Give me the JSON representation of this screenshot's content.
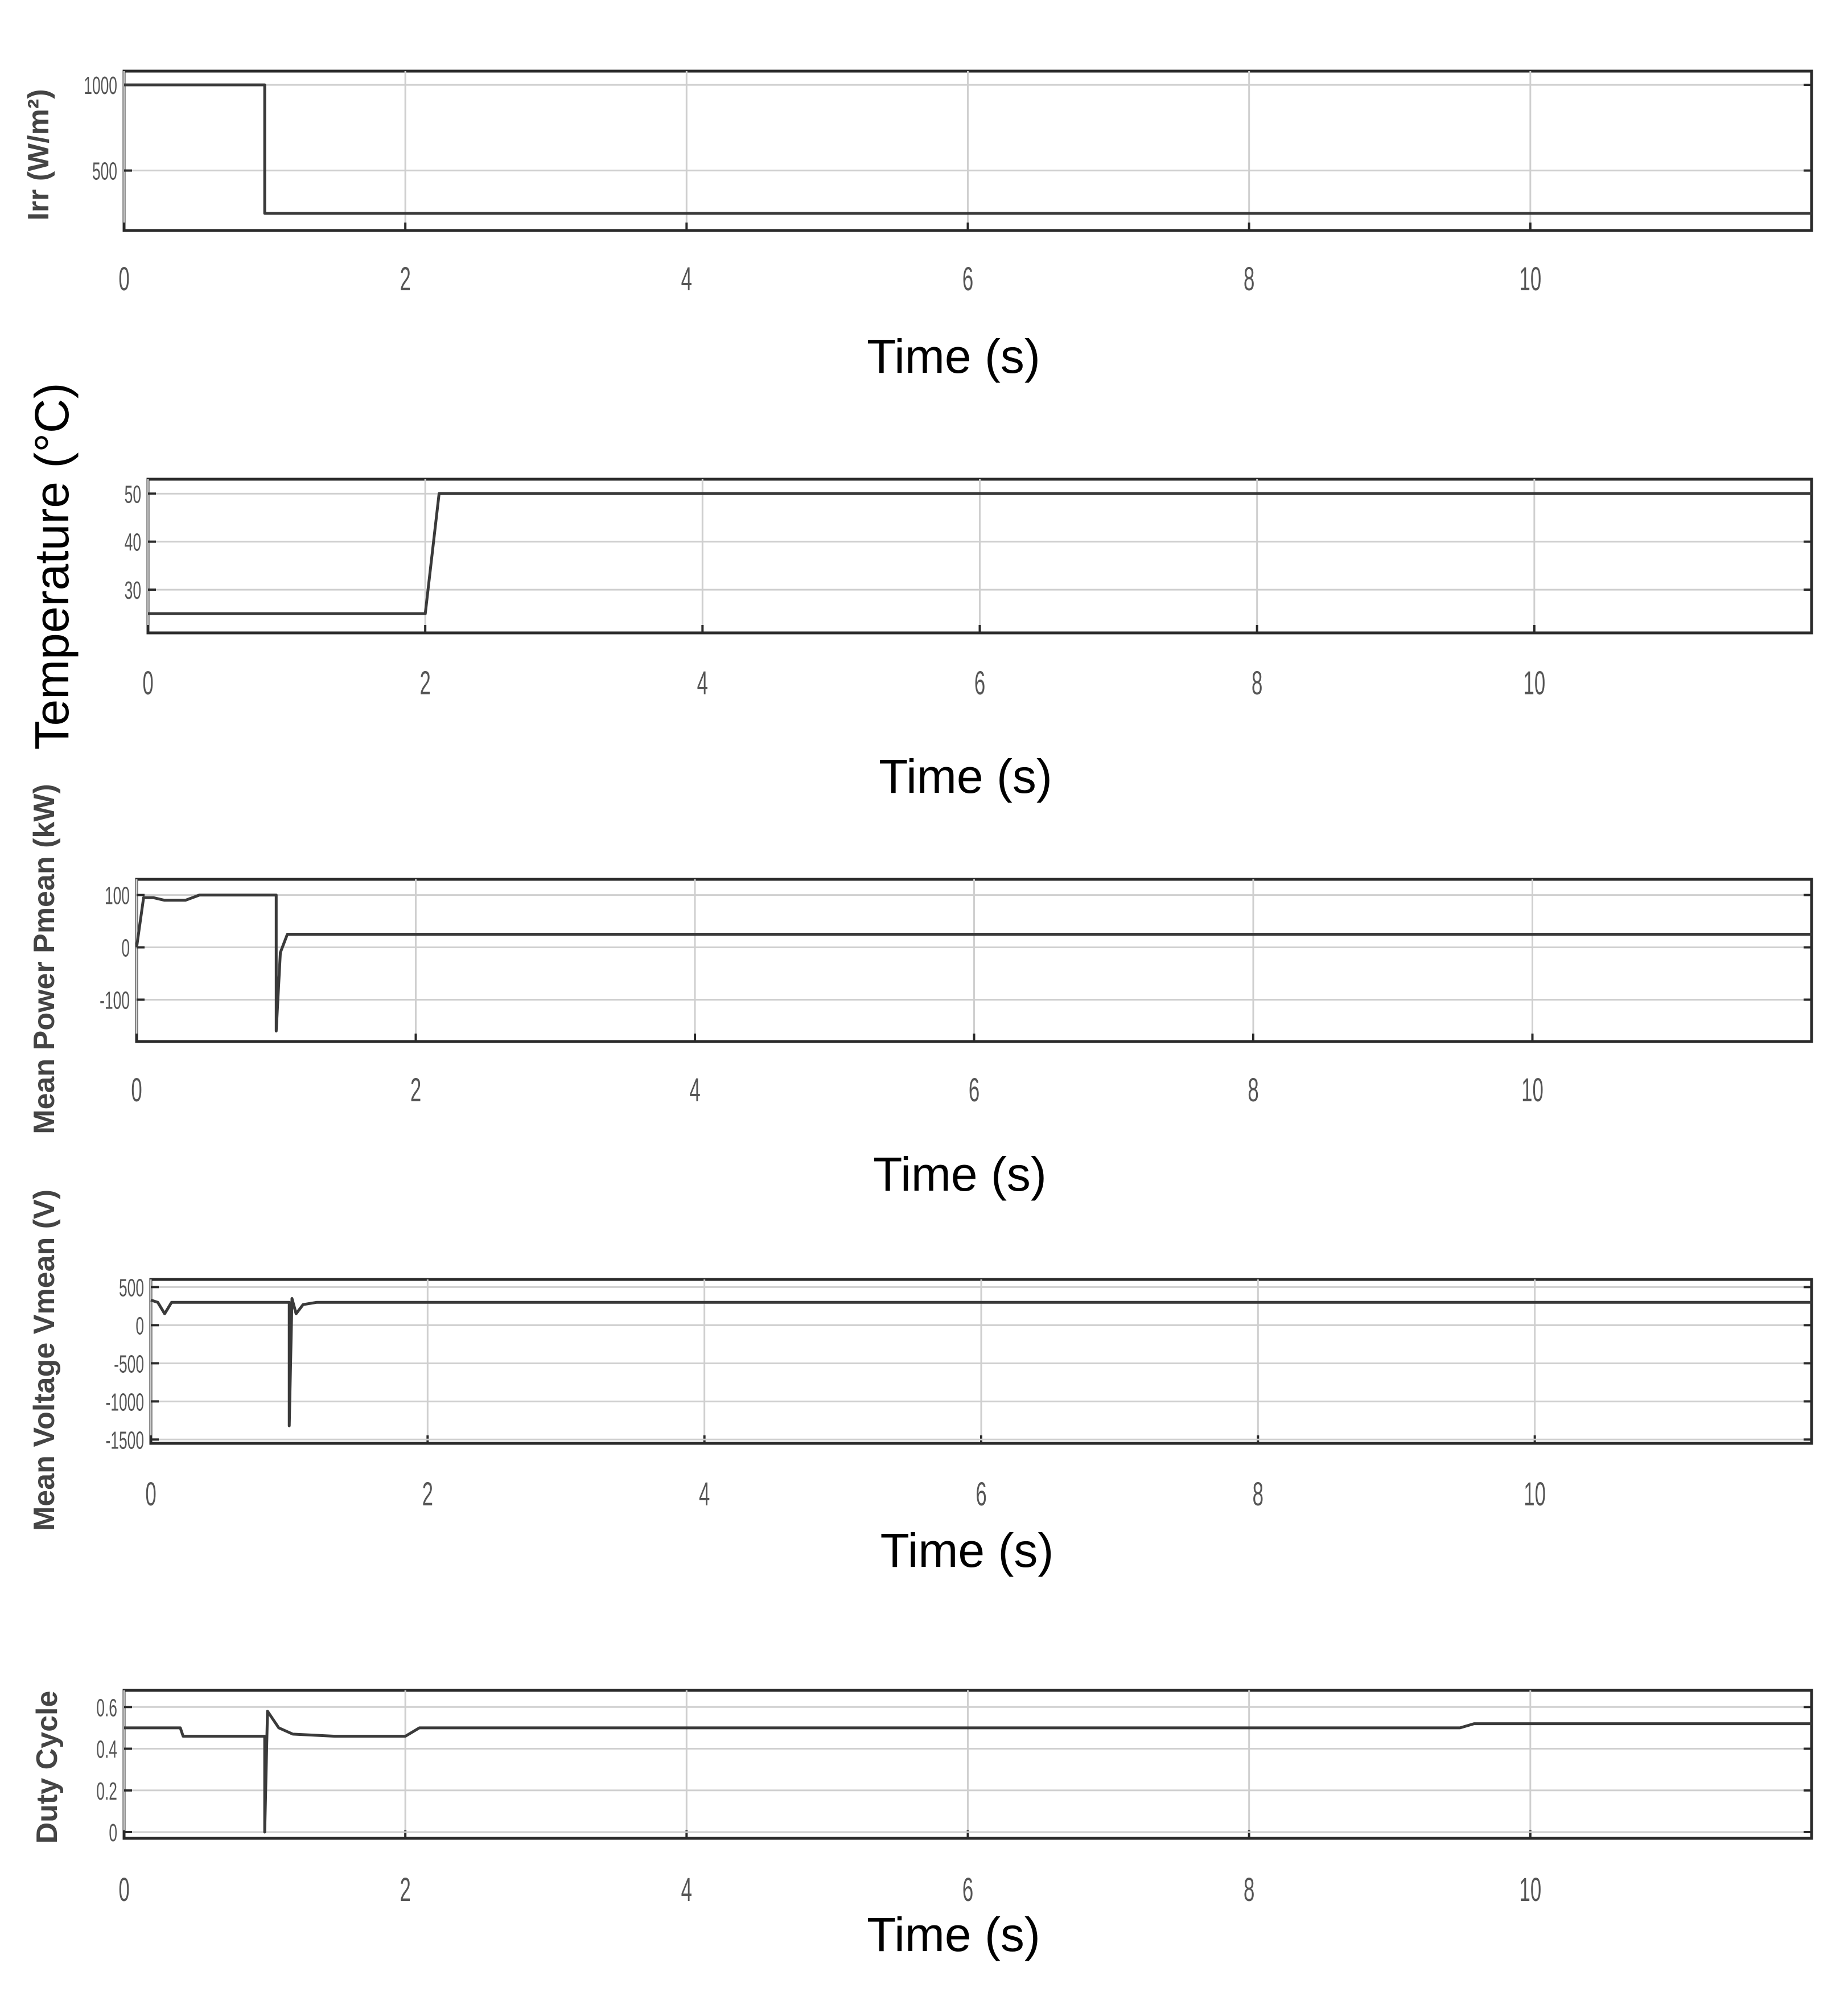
{
  "chart_data": [
    {
      "type": "line",
      "ylabel": "Irr (W/m²)",
      "xlabel": "Time (s)",
      "xticks": [
        "0",
        "2",
        "4",
        "6",
        "8",
        "10"
      ],
      "yticks": [
        "500",
        "1000"
      ],
      "xlim": [
        0,
        12
      ],
      "ylim": [
        150,
        1080
      ],
      "grid": true,
      "series": [
        {
          "x": [
            0,
            1.0,
            1.0,
            12
          ],
          "y": [
            1000,
            1000,
            250,
            250
          ]
        }
      ]
    },
    {
      "type": "line",
      "ylabel": "Temperature (°C)",
      "xlabel": "Time (s)",
      "xticks": [
        "0",
        "2",
        "4",
        "6",
        "8",
        "10"
      ],
      "yticks": [
        "30",
        "40",
        "50"
      ],
      "xlim": [
        0,
        12
      ],
      "ylim": [
        21,
        53
      ],
      "grid": true,
      "series": [
        {
          "x": [
            0,
            2.0,
            2.1,
            12
          ],
          "y": [
            25,
            25,
            50,
            50
          ]
        }
      ]
    },
    {
      "type": "line",
      "ylabel": "Mean Power Pmean (kW)",
      "xlabel": "Time (s)",
      "xticks": [
        "0",
        "2",
        "4",
        "6",
        "8",
        "10"
      ],
      "yticks": [
        "-100",
        "0",
        "100"
      ],
      "xlim": [
        0,
        12
      ],
      "ylim": [
        -180,
        130
      ],
      "grid": true,
      "series": [
        {
          "x": [
            0,
            0.05,
            0.12,
            0.2,
            0.35,
            0.45,
            1.0,
            1.0,
            1.03,
            1.08,
            1.2,
            2.0,
            12
          ],
          "y": [
            0,
            95,
            95,
            90,
            90,
            100,
            100,
            -160,
            -10,
            25,
            25,
            25,
            25
          ]
        }
      ]
    },
    {
      "type": "line",
      "ylabel": "Mean Voltage Vmean (V)",
      "xlabel": "Time (s)",
      "xticks": [
        "0",
        "2",
        "4",
        "6",
        "8",
        "10"
      ],
      "yticks": [
        "-1500",
        "-1000",
        "-500",
        "0",
        "500"
      ],
      "xlim": [
        0,
        12
      ],
      "ylim": [
        -1550,
        600
      ],
      "grid": true,
      "series": [
        {
          "x": [
            0,
            0.05,
            0.1,
            0.15,
            1.0,
            1.0,
            1.02,
            1.05,
            1.1,
            1.2,
            2.0,
            12
          ],
          "y": [
            330,
            300,
            150,
            300,
            300,
            -1320,
            350,
            150,
            270,
            300,
            300,
            300
          ]
        }
      ]
    },
    {
      "type": "line",
      "ylabel": "Duty Cycle",
      "xlabel": "Time (s)",
      "xticks": [
        "0",
        "2",
        "4",
        "6",
        "8",
        "10"
      ],
      "yticks": [
        "0",
        "0.2",
        "0.4",
        "0.6"
      ],
      "xlim": [
        0,
        12
      ],
      "ylim": [
        -0.03,
        0.68
      ],
      "grid": true,
      "series": [
        {
          "x": [
            0,
            0.4,
            0.42,
            1.0,
            1.0,
            1.02,
            1.1,
            1.2,
            1.5,
            2.0,
            2.1,
            9.5,
            9.6,
            12
          ],
          "y": [
            0.5,
            0.5,
            0.46,
            0.46,
            0.0,
            0.58,
            0.5,
            0.47,
            0.46,
            0.46,
            0.5,
            0.5,
            0.52,
            0.52
          ]
        }
      ]
    }
  ]
}
